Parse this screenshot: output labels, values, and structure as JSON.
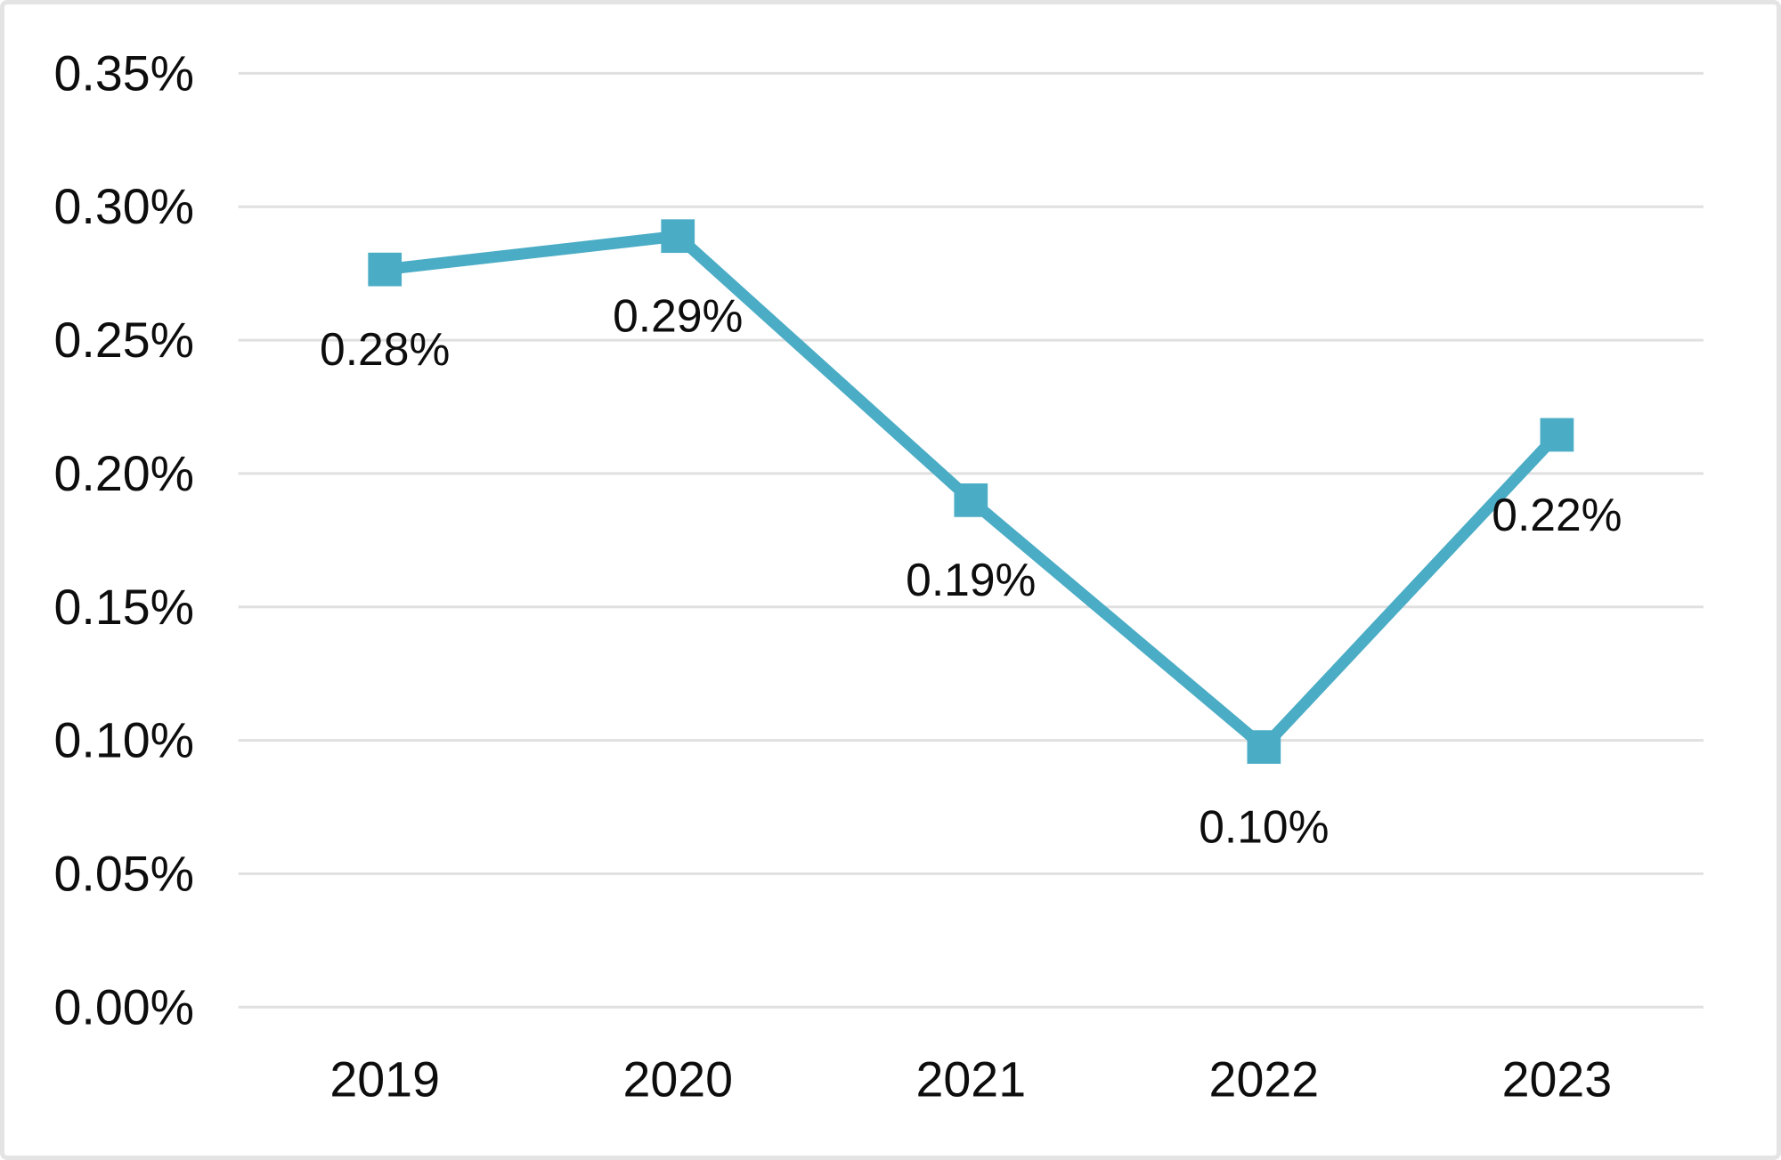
{
  "frame": {
    "background": "#FFFFFF",
    "border_color": "#E4E4E4"
  },
  "chart_data": {
    "type": "line",
    "title": "",
    "xlabel": "",
    "ylabel": "",
    "categories": [
      "2019",
      "2020",
      "2021",
      "2022",
      "2023"
    ],
    "series": [
      {
        "name": "rate",
        "values": [
          0.28,
          0.29,
          0.19,
          0.1,
          0.22
        ],
        "plot_values": [
          0.2765,
          0.289,
          0.19,
          0.0975,
          0.2145
        ],
        "data_labels": [
          "0.28%",
          "0.29%",
          "0.19%",
          "0.10%",
          "0.22%"
        ],
        "color": "#4AACC5",
        "marker": "square"
      }
    ],
    "ylim": [
      0,
      0.35
    ],
    "ytick_step": 0.05,
    "yticks": [
      "0.00%",
      "0.05%",
      "0.10%",
      "0.15%",
      "0.20%",
      "0.25%",
      "0.30%",
      "0.35%"
    ],
    "grid": true,
    "gridline_color": "#E0E0E0",
    "axis_text_color": "#0d0d0d",
    "data_label_color": "#0d0d0d",
    "legend_position": "none",
    "data_labels_position": "below"
  }
}
